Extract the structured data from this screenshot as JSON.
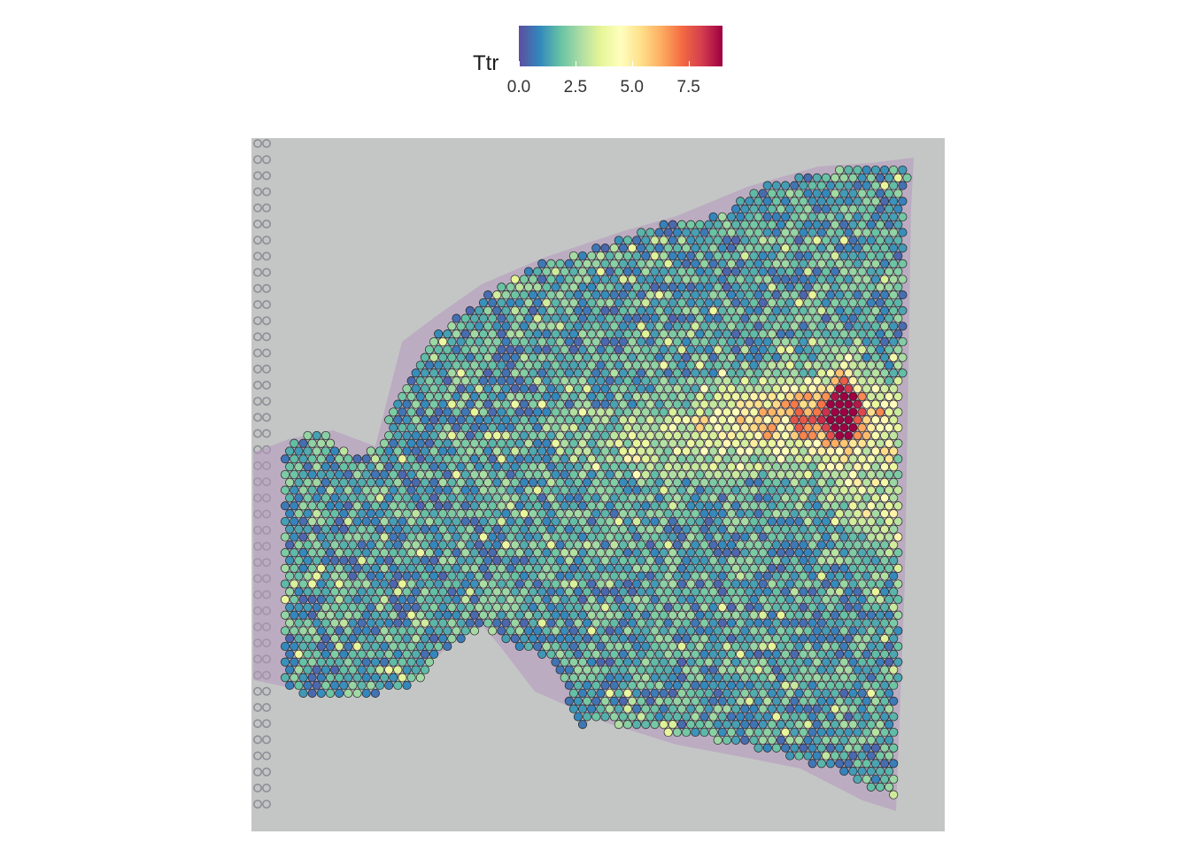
{
  "chart_data": {
    "type": "heatmap",
    "title": "",
    "xlabel": "",
    "ylabel": "",
    "legend": {
      "title": "Ttr",
      "placement": "top",
      "ticks": [
        "0.0",
        "2.5",
        "5.0",
        "7.5"
      ],
      "tick_values": [
        0,
        2.5,
        5,
        7.5
      ],
      "range": [
        0,
        9
      ],
      "colormap": [
        "#5E4FA2",
        "#3288BD",
        "#66C2A5",
        "#ABDDA4",
        "#E6F598",
        "#FFFFBF",
        "#FEE08B",
        "#FDAE61",
        "#F46D43",
        "#D53E4F",
        "#9E0142"
      ]
    },
    "background_color": "#c4c6c5",
    "tissue_color": "#b597bd",
    "description_values": {
      "baseline_range": [
        0.3,
        2.8
      ],
      "peak_value": 9.0,
      "peak_location": "right-center"
    }
  }
}
